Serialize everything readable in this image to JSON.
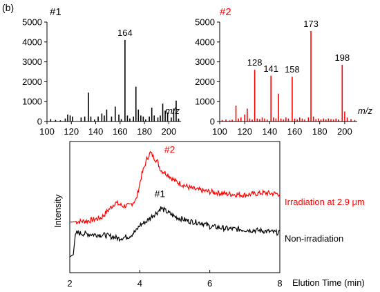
{
  "panel_label": "(b)",
  "chart_data": [
    {
      "type": "bar",
      "title": "#1",
      "title_color": "#000000",
      "color": "#000000",
      "xlabel": "m/z",
      "ylabel": "",
      "xlim": [
        100,
        210
      ],
      "ylim": [
        0,
        5000
      ],
      "xticks": [
        100,
        120,
        140,
        160,
        180,
        200
      ],
      "yticks": [
        0,
        1000,
        2000,
        3000,
        4000,
        5000
      ],
      "peaks": [
        {
          "x": 103,
          "y": 120
        },
        {
          "x": 107,
          "y": 80
        },
        {
          "x": 111,
          "y": 60
        },
        {
          "x": 115,
          "y": 150
        },
        {
          "x": 117,
          "y": 350
        },
        {
          "x": 119,
          "y": 300
        },
        {
          "x": 121,
          "y": 250
        },
        {
          "x": 128,
          "y": 200
        },
        {
          "x": 131,
          "y": 250
        },
        {
          "x": 134,
          "y": 1450
        },
        {
          "x": 136,
          "y": 250
        },
        {
          "x": 139,
          "y": 100
        },
        {
          "x": 142,
          "y": 250
        },
        {
          "x": 145,
          "y": 400
        },
        {
          "x": 147,
          "y": 300
        },
        {
          "x": 149,
          "y": 600
        },
        {
          "x": 153,
          "y": 250
        },
        {
          "x": 156,
          "y": 750
        },
        {
          "x": 159,
          "y": 350
        },
        {
          "x": 161,
          "y": 120
        },
        {
          "x": 164,
          "y": 4100
        },
        {
          "x": 166,
          "y": 300
        },
        {
          "x": 168,
          "y": 150
        },
        {
          "x": 171,
          "y": 250
        },
        {
          "x": 173,
          "y": 1750
        },
        {
          "x": 175,
          "y": 600
        },
        {
          "x": 177,
          "y": 300
        },
        {
          "x": 179,
          "y": 250
        },
        {
          "x": 181,
          "y": 100
        },
        {
          "x": 184,
          "y": 250
        },
        {
          "x": 186,
          "y": 700
        },
        {
          "x": 188,
          "y": 300
        },
        {
          "x": 191,
          "y": 200
        },
        {
          "x": 193,
          "y": 300
        },
        {
          "x": 195,
          "y": 900
        },
        {
          "x": 197,
          "y": 550
        },
        {
          "x": 199,
          "y": 450
        },
        {
          "x": 202,
          "y": 200
        },
        {
          "x": 204,
          "y": 650
        },
        {
          "x": 206,
          "y": 1050
        },
        {
          "x": 208,
          "y": 150
        }
      ],
      "annotations": [
        {
          "x": 164,
          "y": 4100,
          "text": "164"
        }
      ]
    },
    {
      "type": "bar",
      "title": "#2",
      "title_color": "#ff0000",
      "color": "#ff0000",
      "xlabel": "m/z",
      "ylabel": "",
      "xlim": [
        100,
        210
      ],
      "ylim": [
        0,
        5000
      ],
      "xticks": [
        100,
        120,
        140,
        160,
        180,
        200
      ],
      "yticks": [
        0,
        1000,
        2000,
        3000,
        4000,
        5000
      ],
      "peaks": [
        {
          "x": 102,
          "y": 80
        },
        {
          "x": 105,
          "y": 100
        },
        {
          "x": 108,
          "y": 60
        },
        {
          "x": 110,
          "y": 90
        },
        {
          "x": 113,
          "y": 800
        },
        {
          "x": 115,
          "y": 150
        },
        {
          "x": 117,
          "y": 200
        },
        {
          "x": 120,
          "y": 350
        },
        {
          "x": 122,
          "y": 650
        },
        {
          "x": 124,
          "y": 150
        },
        {
          "x": 126,
          "y": 100
        },
        {
          "x": 128,
          "y": 2600
        },
        {
          "x": 130,
          "y": 150
        },
        {
          "x": 132,
          "y": 120
        },
        {
          "x": 134,
          "y": 200
        },
        {
          "x": 136,
          "y": 150
        },
        {
          "x": 138,
          "y": 100
        },
        {
          "x": 141,
          "y": 2300
        },
        {
          "x": 143,
          "y": 200
        },
        {
          "x": 145,
          "y": 150
        },
        {
          "x": 147,
          "y": 1400
        },
        {
          "x": 149,
          "y": 150
        },
        {
          "x": 151,
          "y": 100
        },
        {
          "x": 153,
          "y": 200
        },
        {
          "x": 155,
          "y": 150
        },
        {
          "x": 158,
          "y": 2250
        },
        {
          "x": 160,
          "y": 150
        },
        {
          "x": 162,
          "y": 100
        },
        {
          "x": 164,
          "y": 200
        },
        {
          "x": 166,
          "y": 150
        },
        {
          "x": 168,
          "y": 100
        },
        {
          "x": 171,
          "y": 200
        },
        {
          "x": 173,
          "y": 4550
        },
        {
          "x": 175,
          "y": 250
        },
        {
          "x": 177,
          "y": 120
        },
        {
          "x": 179,
          "y": 150
        },
        {
          "x": 181,
          "y": 100
        },
        {
          "x": 183,
          "y": 150
        },
        {
          "x": 185,
          "y": 100
        },
        {
          "x": 187,
          "y": 150
        },
        {
          "x": 189,
          "y": 120
        },
        {
          "x": 191,
          "y": 100
        },
        {
          "x": 193,
          "y": 150
        },
        {
          "x": 195,
          "y": 100
        },
        {
          "x": 198,
          "y": 2850
        },
        {
          "x": 200,
          "y": 500
        },
        {
          "x": 202,
          "y": 200
        },
        {
          "x": 205,
          "y": 120
        },
        {
          "x": 208,
          "y": 80
        }
      ],
      "annotations": [
        {
          "x": 128,
          "y": 2600,
          "text": "128"
        },
        {
          "x": 141,
          "y": 2300,
          "text": "141"
        },
        {
          "x": 158,
          "y": 2250,
          "text": "158"
        },
        {
          "x": 173,
          "y": 4550,
          "text": "173"
        },
        {
          "x": 198,
          "y": 2850,
          "text": "198"
        }
      ]
    },
    {
      "type": "line",
      "title": "",
      "xlabel": "Elution Time (min)",
      "ylabel": "Intensity",
      "xlim": [
        2,
        8
      ],
      "ylim": [
        0,
        100
      ],
      "xticks": [
        2,
        4,
        6,
        8
      ],
      "grid": false,
      "series": [
        {
          "name": "Irradiation at 2.9 μm",
          "peak_label": "#2",
          "peak_label_x": 4.7,
          "peak_label_y": 96,
          "color": "#ff0000",
          "x": [
            2.0,
            2.5,
            2.9,
            3.1,
            3.3,
            3.5,
            3.7,
            3.9,
            4.05,
            4.2,
            4.3,
            4.4,
            4.5,
            4.6,
            4.8,
            5.0,
            5.2,
            5.4,
            5.6,
            5.8,
            6.0,
            6.5,
            7.0,
            7.5,
            8.0
          ],
          "y": [
            32,
            33,
            36,
            43,
            50,
            47,
            47,
            53,
            75,
            90,
            96,
            92,
            88,
            80,
            76,
            70,
            67,
            64,
            62,
            61,
            60,
            58,
            57,
            59,
            58
          ]
        },
        {
          "name": "Non-irradiation",
          "peak_label": "#1",
          "peak_label_x": 4.42,
          "peak_label_y": 55,
          "color": "#000000",
          "x": [
            2.0,
            2.1,
            2.15,
            2.2,
            2.5,
            3.0,
            3.4,
            3.7,
            3.9,
            4.0,
            4.2,
            4.4,
            4.5,
            4.6,
            4.7,
            4.9,
            5.0,
            5.2,
            5.4,
            5.6,
            5.8,
            6.0,
            6.5,
            7.0,
            7.5,
            8.0
          ],
          "y": [
            0,
            2,
            18,
            22,
            21,
            20,
            17,
            19,
            24,
            29,
            33,
            39,
            41,
            45,
            43,
            39,
            37,
            35,
            33,
            32,
            31,
            28,
            26,
            25,
            24,
            22
          ]
        }
      ]
    }
  ]
}
